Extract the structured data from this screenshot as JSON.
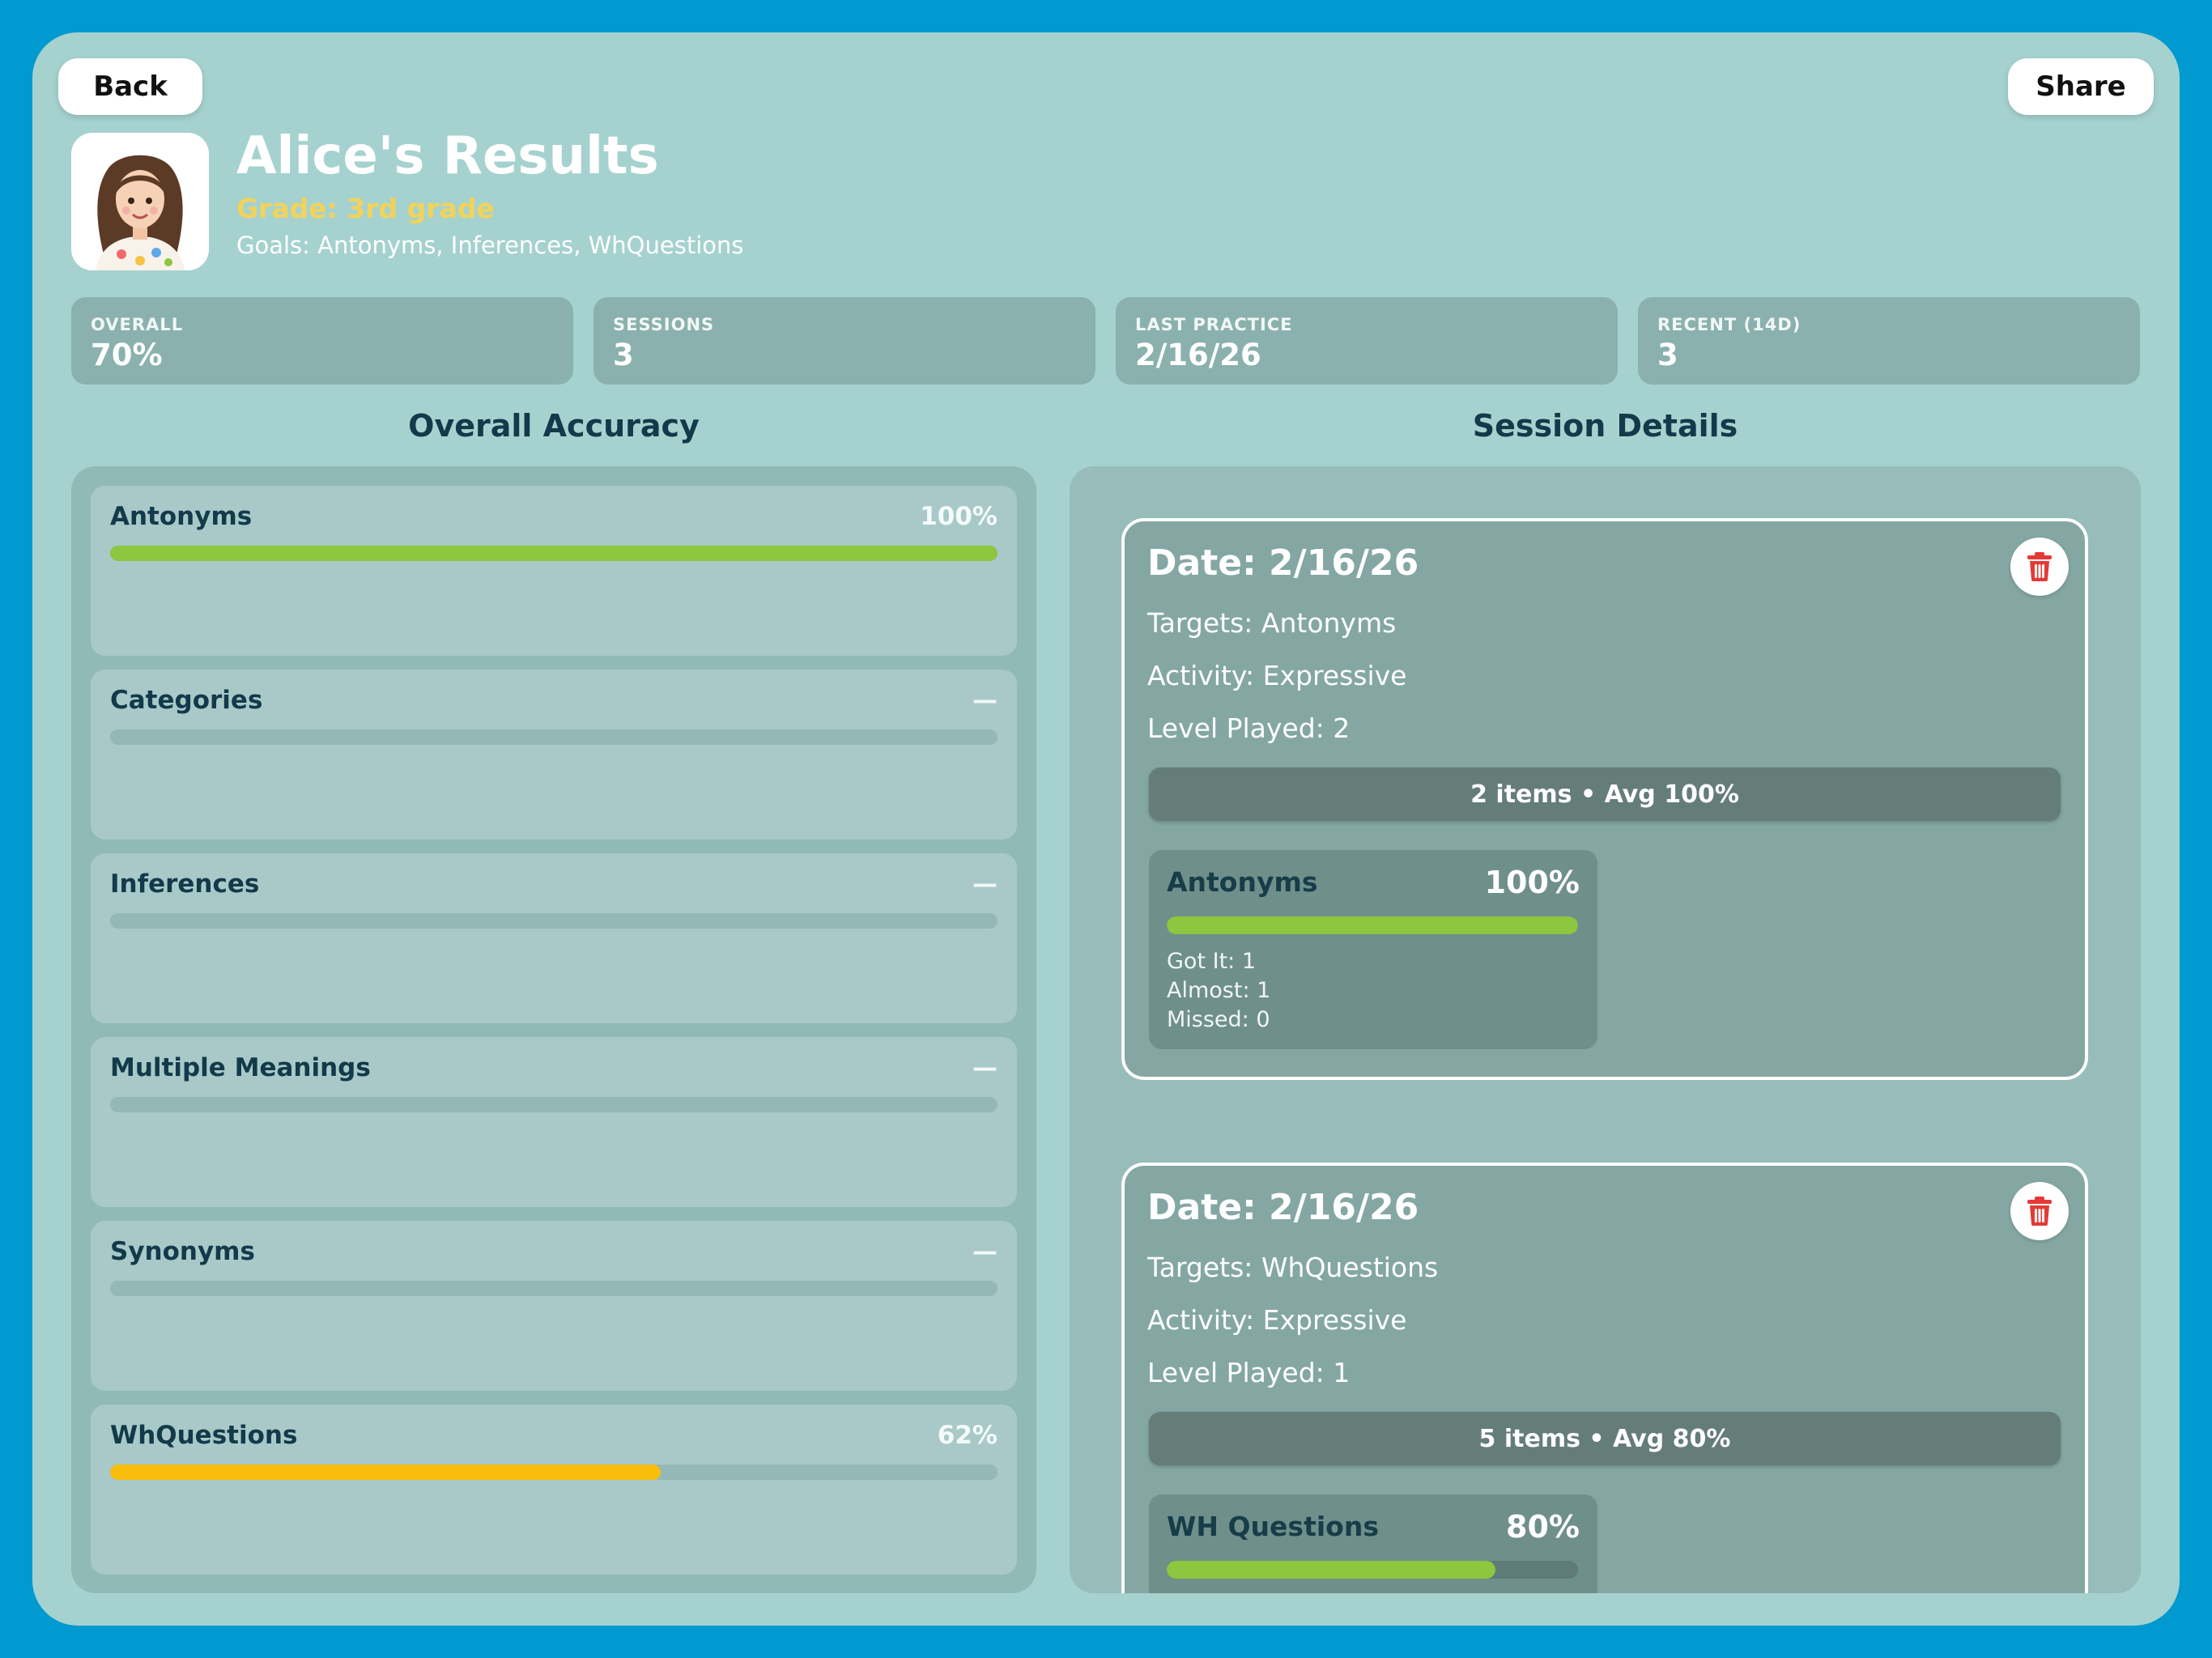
{
  "header": {
    "back_label": "Back",
    "share_label": "Share",
    "title": "Alice's Results",
    "grade": "Grade: 3rd grade",
    "goals": "Goals: Antonyms, Inferences, WhQuestions"
  },
  "stats": [
    {
      "label": "OVERALL",
      "value": "70%"
    },
    {
      "label": "SESSIONS",
      "value": "3"
    },
    {
      "label": "LAST PRACTICE",
      "value": "2/16/26"
    },
    {
      "label": "RECENT (14D)",
      "value": "3"
    }
  ],
  "accuracy": {
    "title": "Overall Accuracy",
    "items": [
      {
        "name": "Antonyms",
        "pct": "100%",
        "value": 1.0,
        "color": "#8dc63f"
      },
      {
        "name": "Categories",
        "pct": "—",
        "value": 0,
        "color": "#8dc63f"
      },
      {
        "name": "Inferences",
        "pct": "—",
        "value": 0,
        "color": "#8dc63f"
      },
      {
        "name": "Multiple Meanings",
        "pct": "—",
        "value": 0,
        "color": "#8dc63f"
      },
      {
        "name": "Synonyms",
        "pct": "—",
        "value": 0,
        "color": "#8dc63f"
      },
      {
        "name": "WhQuestions",
        "pct": "62%",
        "value": 0.62,
        "color": "#f8bd0b"
      }
    ]
  },
  "sessions": {
    "title": "Session Details",
    "items": [
      {
        "date": "Date: 2/16/26",
        "targets": "Targets: Antonyms",
        "activity": "Activity: Expressive",
        "level": "Level Played: 2",
        "summary": "2 items • Avg 100%",
        "sub": {
          "name": "Antonyms",
          "pct": "100%",
          "value": 1.0,
          "got_it": "Got It: 1",
          "almost": "Almost: 1",
          "missed": "Missed: 0"
        }
      },
      {
        "date": "Date: 2/16/26",
        "targets": "Targets: WhQuestions",
        "activity": "Activity: Expressive",
        "level": "Level Played: 1",
        "summary": "5 items • Avg 80%",
        "sub": {
          "name": "WH Questions",
          "pct": "80%",
          "value": 0.8,
          "got_it": "",
          "almost": "",
          "missed": ""
        }
      }
    ]
  },
  "colors": {
    "background": "#0099d0",
    "panel": "#a5d2cf",
    "progress_green": "#8dc63f",
    "progress_yellow": "#f8bd0b",
    "delete_red": "#e53935"
  }
}
